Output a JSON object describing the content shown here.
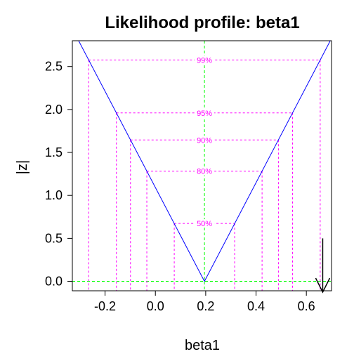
{
  "chart_data": {
    "type": "line",
    "title": "Likelihood profile: beta1",
    "xlabel": "beta1",
    "ylabel": "|z|",
    "xlim": [
      -0.33,
      0.7
    ],
    "ylim": [
      -0.11,
      2.8
    ],
    "x_ticks": [
      -0.2,
      0.0,
      0.2,
      0.4,
      0.6
    ],
    "x_tick_labels": [
      "-0.2",
      "0.0",
      "0.2",
      "0.4",
      "0.6"
    ],
    "y_ticks": [
      0.0,
      0.5,
      1.0,
      1.5,
      2.0,
      2.5
    ],
    "y_tick_labels": [
      "0.0",
      "0.5",
      "1.0",
      "1.5",
      "2.0",
      "2.5"
    ],
    "series": [
      {
        "color": "#0000ff",
        "x": [
          -0.305,
          0.195,
          0.695
        ],
        "y": [
          2.8,
          0.0,
          2.8
        ]
      }
    ],
    "mle": 0.195,
    "confidence_levels": [
      {
        "label": "50%",
        "z": 0.674,
        "lower": 0.075,
        "upper": 0.315
      },
      {
        "label": "80%",
        "z": 1.282,
        "lower": -0.034,
        "upper": 0.424
      },
      {
        "label": "90%",
        "z": 1.645,
        "lower": -0.099,
        "upper": 0.489
      },
      {
        "label": "95%",
        "z": 1.96,
        "lower": -0.155,
        "upper": 0.545
      },
      {
        "label": "99%",
        "z": 2.576,
        "lower": -0.265,
        "upper": 0.655
      }
    ],
    "arrow": {
      "x": 0.665,
      "y_from": 0.5,
      "y_to": -0.11
    },
    "colors": {
      "curve": "#0000ff",
      "levels": "#ff00ff",
      "reference": "#00ff00"
    }
  }
}
